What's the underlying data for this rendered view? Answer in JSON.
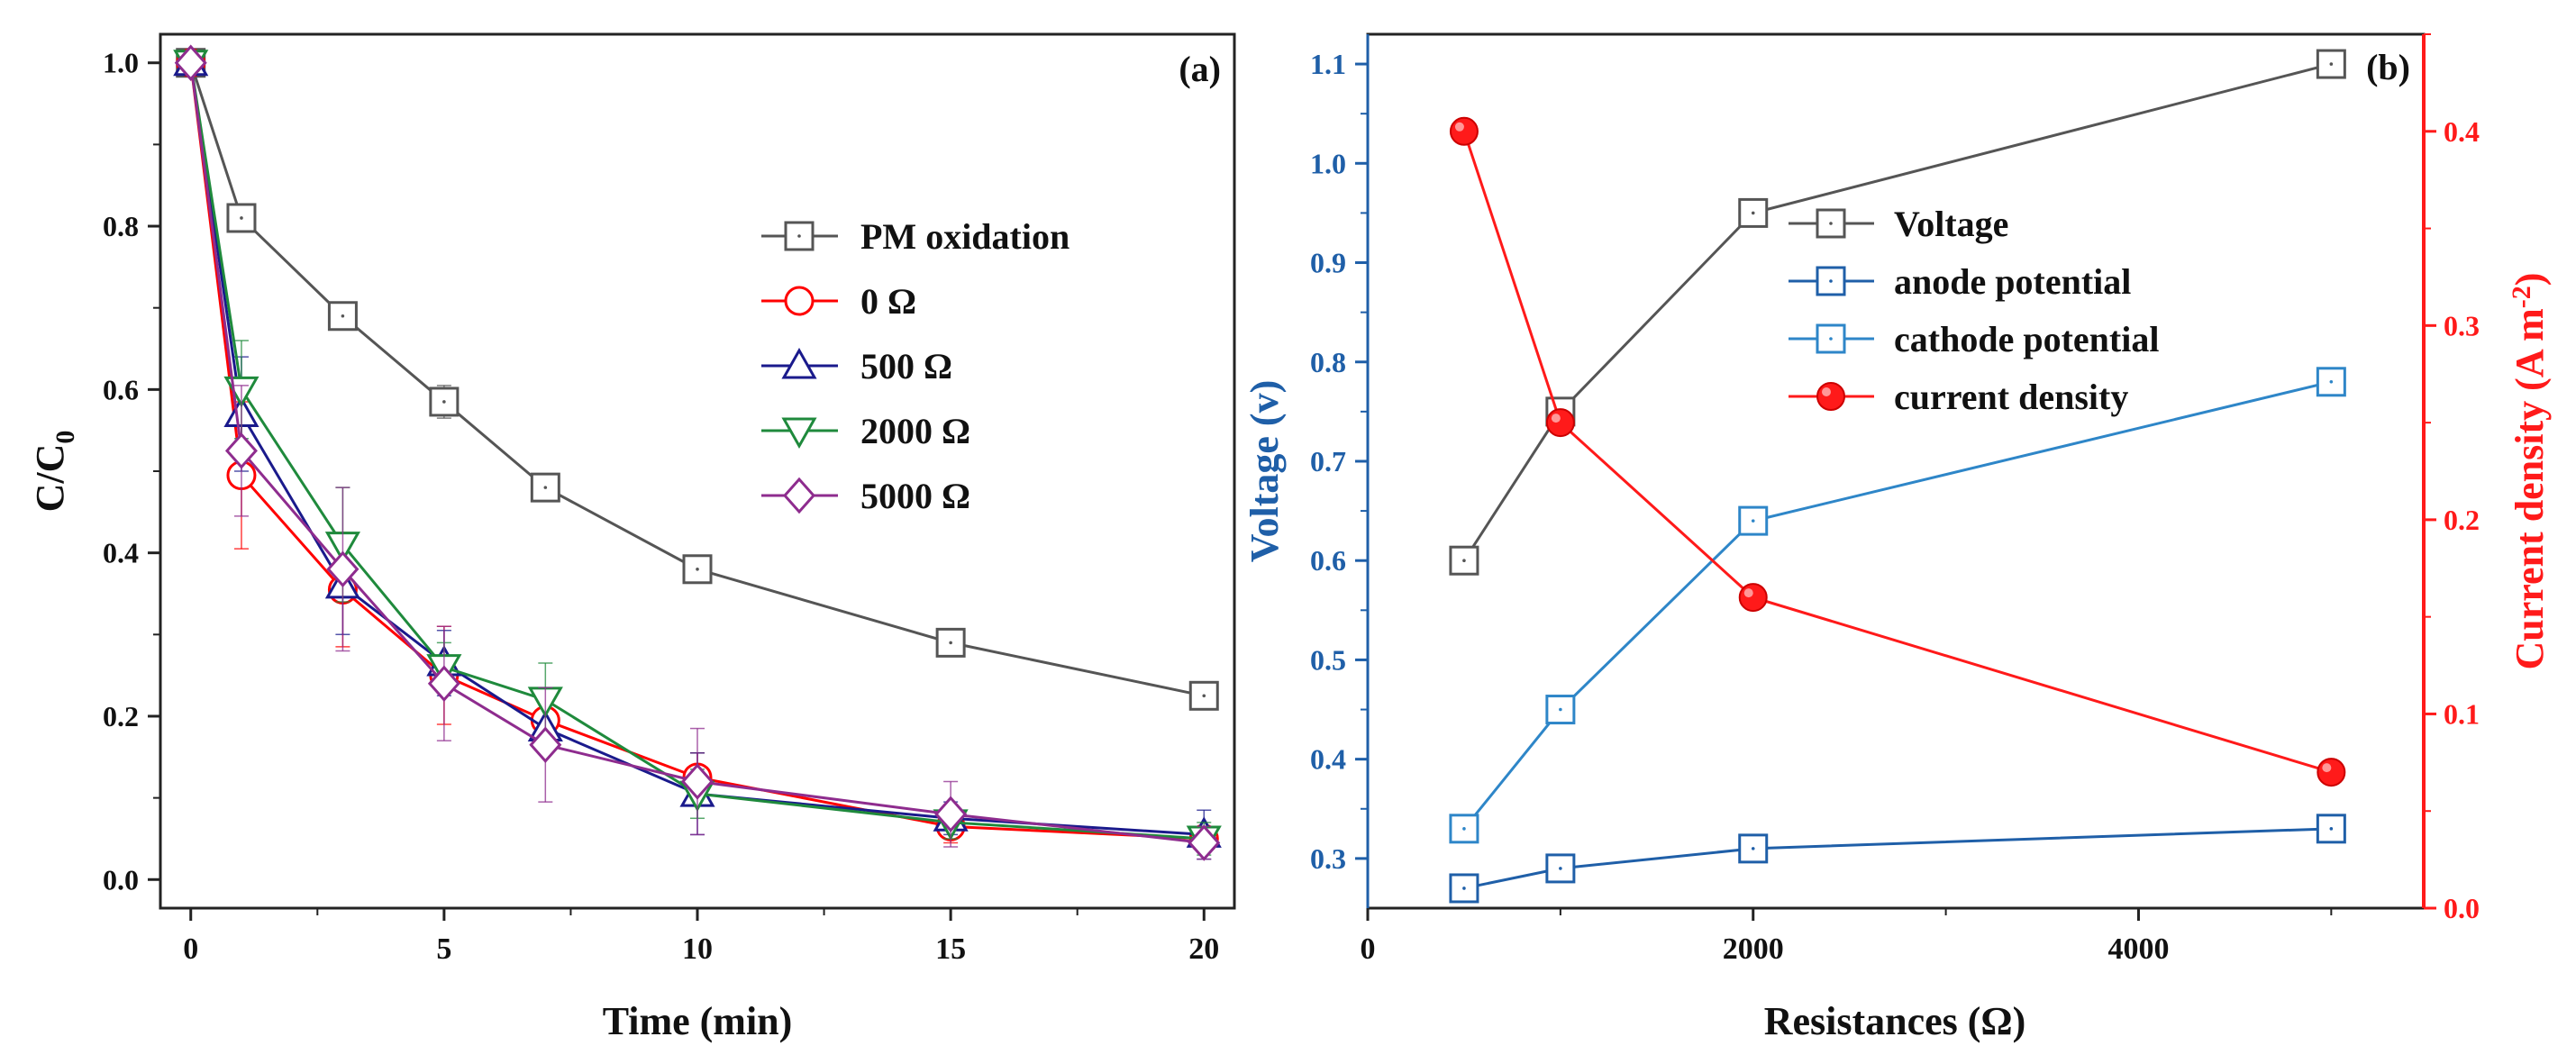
{
  "chart_data": [
    {
      "panel": "(a)",
      "type": "line",
      "xlabel": "Time (min)",
      "ylabel": "C/C",
      "ylabel_sub": "0",
      "xlim": [
        -0.6,
        20.6
      ],
      "ylim": [
        -0.035,
        1.035
      ],
      "xticks": [
        0,
        5,
        10,
        15,
        20
      ],
      "yticks": [
        0.0,
        0.2,
        0.4,
        0.6,
        0.8,
        1.0
      ],
      "ytick_labels": [
        "0.0",
        "0.2",
        "0.4",
        "0.6",
        "0.8",
        "1.0"
      ],
      "grid": false,
      "legend_position": "top-right",
      "x": [
        0,
        1,
        3,
        5,
        7,
        10,
        15,
        20
      ],
      "series": [
        {
          "name": "PM oxidation",
          "marker": "square",
          "color": "#555555",
          "values": [
            1.0,
            0.81,
            0.69,
            0.585,
            0.48,
            0.38,
            0.29,
            0.225
          ],
          "errors": [
            0.01,
            0.01,
            0.01,
            0.02,
            0.01,
            0.01,
            0.01,
            0.01
          ]
        },
        {
          "name": "0 Ω",
          "marker": "circle",
          "color": "#ff0000",
          "values": [
            1.0,
            0.495,
            0.355,
            0.25,
            0.195,
            0.125,
            0.065,
            0.05
          ],
          "errors": [
            0.01,
            0.09,
            0.07,
            0.06,
            0.04,
            0.03,
            0.02,
            0.01
          ]
        },
        {
          "name": "500 Ω",
          "marker": "triangle-up",
          "color": "#1a1a8c",
          "values": [
            1.0,
            0.57,
            0.36,
            0.265,
            0.185,
            0.105,
            0.075,
            0.055
          ],
          "errors": [
            0.01,
            0.07,
            0.06,
            0.04,
            0.03,
            0.05,
            0.02,
            0.03
          ]
        },
        {
          "name": "2000 Ω",
          "marker": "triangle-down",
          "color": "#1f8a3c",
          "values": [
            1.0,
            0.6,
            0.41,
            0.26,
            0.22,
            0.105,
            0.07,
            0.05
          ],
          "errors": [
            0.01,
            0.06,
            0.07,
            0.03,
            0.045,
            0.03,
            0.02,
            0.02
          ]
        },
        {
          "name": "5000 Ω",
          "marker": "diamond",
          "color": "#8e2c8e",
          "values": [
            1.0,
            0.525,
            0.38,
            0.24,
            0.165,
            0.12,
            0.08,
            0.045
          ],
          "errors": [
            0.01,
            0.08,
            0.1,
            0.07,
            0.07,
            0.065,
            0.04,
            0.02
          ]
        }
      ]
    },
    {
      "panel": "(b)",
      "type": "line",
      "xlabel": "Resistances (Ω)",
      "ylabel_left": "Voltage (v)",
      "ylabel_right_prefix": "Current density (A m",
      "ylabel_right_sup": "-2",
      "ylabel_right_suffix": ")",
      "xlim": [
        0,
        5480
      ],
      "xticks": [
        0,
        2000,
        4000
      ],
      "ylim_left": [
        0.25,
        1.13
      ],
      "yticks_left": [
        0.3,
        0.4,
        0.5,
        0.6,
        0.7,
        0.8,
        0.9,
        1.0,
        1.1
      ],
      "ylim_right": [
        0.0,
        0.45
      ],
      "yticks_right": [
        0.0,
        0.1,
        0.2,
        0.3,
        0.4
      ],
      "grid": false,
      "legend_position": "top-right",
      "x": [
        500,
        1000,
        2000,
        5000
      ],
      "series": [
        {
          "name": "Voltage",
          "axis": "left",
          "marker": "square",
          "color": "#555555",
          "values": [
            0.6,
            0.75,
            0.95,
            1.1
          ]
        },
        {
          "name": "anode potential",
          "axis": "left",
          "marker": "square",
          "color": "#1f5fa8",
          "values": [
            0.27,
            0.29,
            0.31,
            0.33
          ]
        },
        {
          "name": "cathode potential",
          "axis": "left",
          "marker": "square",
          "color": "#2e86c8",
          "values": [
            0.33,
            0.45,
            0.64,
            0.78
          ]
        },
        {
          "name": "current density",
          "axis": "right",
          "marker": "filled-circle",
          "color": "#ff1a1a",
          "values": [
            0.4,
            0.25,
            0.16,
            0.07
          ]
        }
      ]
    }
  ]
}
